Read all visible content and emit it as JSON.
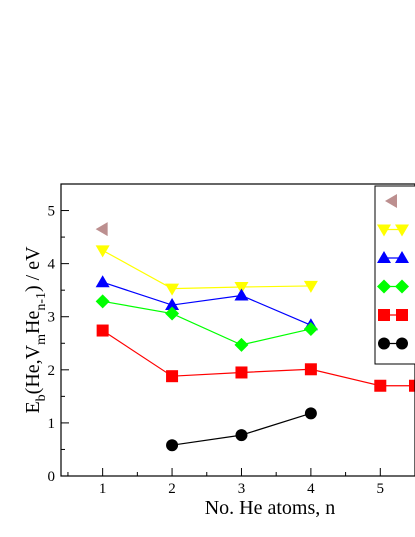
{
  "chart_data": {
    "type": "line",
    "xlabel": "No. He atoms, n",
    "ylabel_parts": {
      "main": "E",
      "sub1": "b",
      "mid": "(He,V",
      "sub2": "m",
      "he": "He",
      "sub3": "n-1",
      "tail": ") / eV"
    },
    "xlim": [
      0.4,
      5.5
    ],
    "ylim": [
      0,
      5.5
    ],
    "x_ticks": [
      "1",
      "2",
      "3",
      "4",
      "5"
    ],
    "y_ticks": [
      "0",
      "1",
      "2",
      "3",
      "4",
      "5"
    ],
    "grid": false,
    "legend_placement": "top-right (clipped)",
    "series": [
      {
        "color": "#bc8f8f",
        "marker": "triangle-left",
        "points": [
          [
            1,
            4.65
          ]
        ]
      },
      {
        "color": "#ffff00",
        "marker": "triangle-down",
        "points": [
          [
            1,
            4.25
          ],
          [
            2,
            3.53
          ],
          [
            3,
            3.56
          ],
          [
            4,
            3.58
          ]
        ]
      },
      {
        "color": "#0000ff",
        "marker": "triangle-up",
        "points": [
          [
            1,
            3.65
          ],
          [
            2,
            3.22
          ],
          [
            3,
            3.4
          ],
          [
            4,
            2.84
          ]
        ]
      },
      {
        "color": "#00ff00",
        "marker": "diamond",
        "points": [
          [
            1,
            3.29
          ],
          [
            2,
            3.06
          ],
          [
            3,
            2.47
          ],
          [
            4,
            2.77
          ]
        ]
      },
      {
        "color": "#ff0000",
        "marker": "square",
        "points": [
          [
            1,
            2.74
          ],
          [
            2,
            1.88
          ],
          [
            3,
            1.95
          ],
          [
            4,
            2.01
          ],
          [
            5,
            1.7
          ],
          [
            5.5,
            1.7
          ]
        ]
      },
      {
        "color": "#000000",
        "marker": "circle",
        "points": [
          [
            2,
            0.58
          ],
          [
            3,
            0.77
          ],
          [
            4,
            1.18
          ]
        ]
      }
    ]
  }
}
